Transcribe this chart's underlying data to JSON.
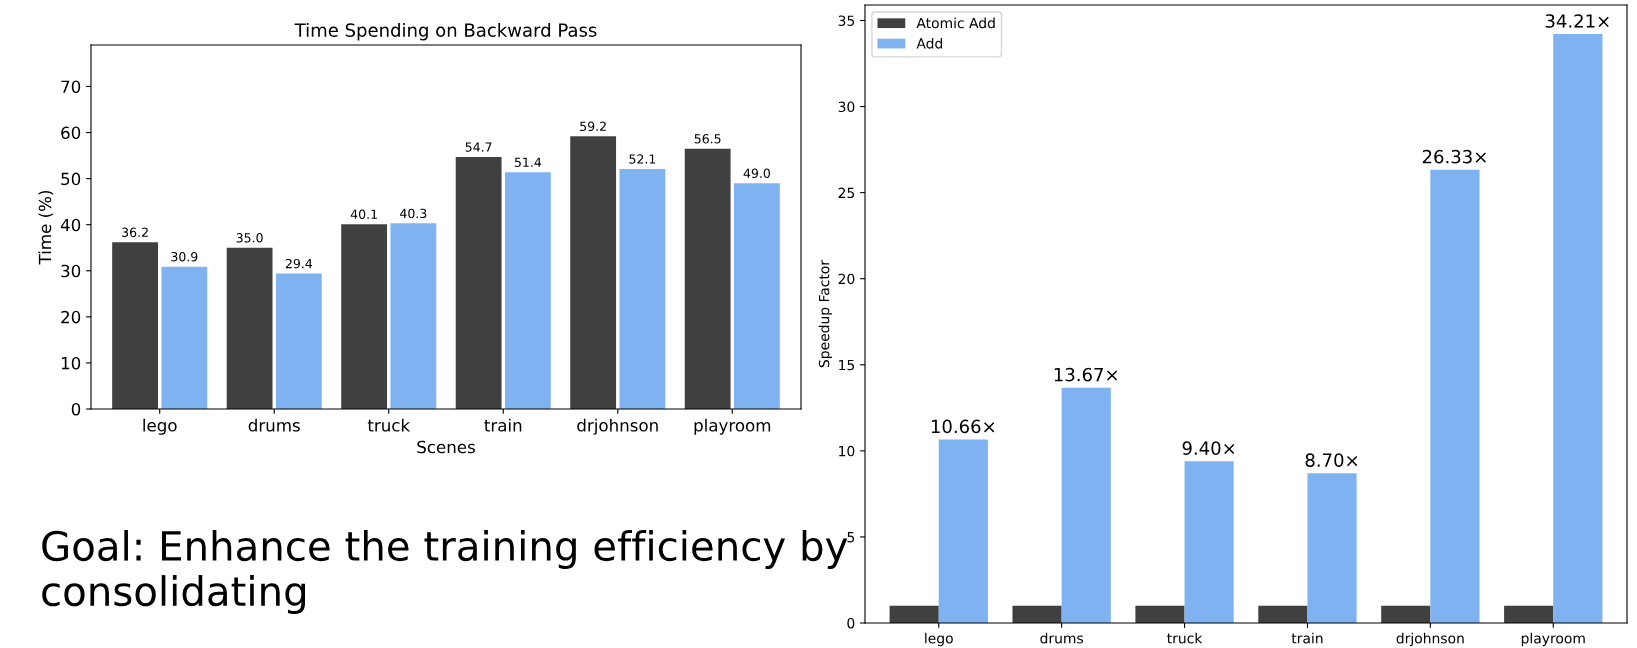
{
  "chart_data": [
    {
      "type": "bar",
      "title": "Time Spending on Backward Pass",
      "xlabel": "Scenes",
      "ylabel": "Time (%)",
      "categories": [
        "lego",
        "drums",
        "truck",
        "train",
        "drjohnson",
        "playroom"
      ],
      "series": [
        {
          "color": "#404040",
          "values": [
            36.2,
            35.0,
            40.1,
            54.7,
            59.2,
            56.5
          ],
          "value_labels": [
            "36.2",
            "35.0",
            "40.1",
            "54.7",
            "59.2",
            "56.5"
          ]
        },
        {
          "color": "#7fb2f0",
          "values": [
            30.9,
            29.4,
            40.3,
            51.4,
            52.1,
            49.0
          ],
          "value_labels": [
            "30.9",
            "29.4",
            "40.3",
            "51.4",
            "52.1",
            "49.0"
          ]
        }
      ],
      "ylim": [
        0,
        79
      ],
      "yticks": [
        0,
        10,
        20,
        30,
        40,
        50,
        60,
        70
      ],
      "grid": false,
      "annotations": [
        "Goal: Enhance the training efficiency by consolidating"
      ]
    },
    {
      "type": "bar",
      "ylabel": "Speedup Factor",
      "categories": [
        "lego",
        "drums",
        "truck",
        "train",
        "drjohnson",
        "playroom"
      ],
      "series": [
        {
          "name": "Atomic Add",
          "color": "#404040",
          "values": [
            1,
            1,
            1,
            1,
            1,
            1
          ]
        },
        {
          "name": "Add",
          "color": "#7fb2f0",
          "values": [
            10.66,
            13.67,
            9.4,
            8.7,
            26.33,
            34.21
          ],
          "value_labels": [
            "10.66×",
            "13.67×",
            "9.40×",
            "8.70×",
            "26.33×",
            "34.21×"
          ]
        }
      ],
      "ylim": [
        0,
        35.9
      ],
      "yticks": [
        0,
        5,
        10,
        15,
        20,
        25,
        30,
        35
      ],
      "legend": "top left",
      "grid": false
    }
  ]
}
